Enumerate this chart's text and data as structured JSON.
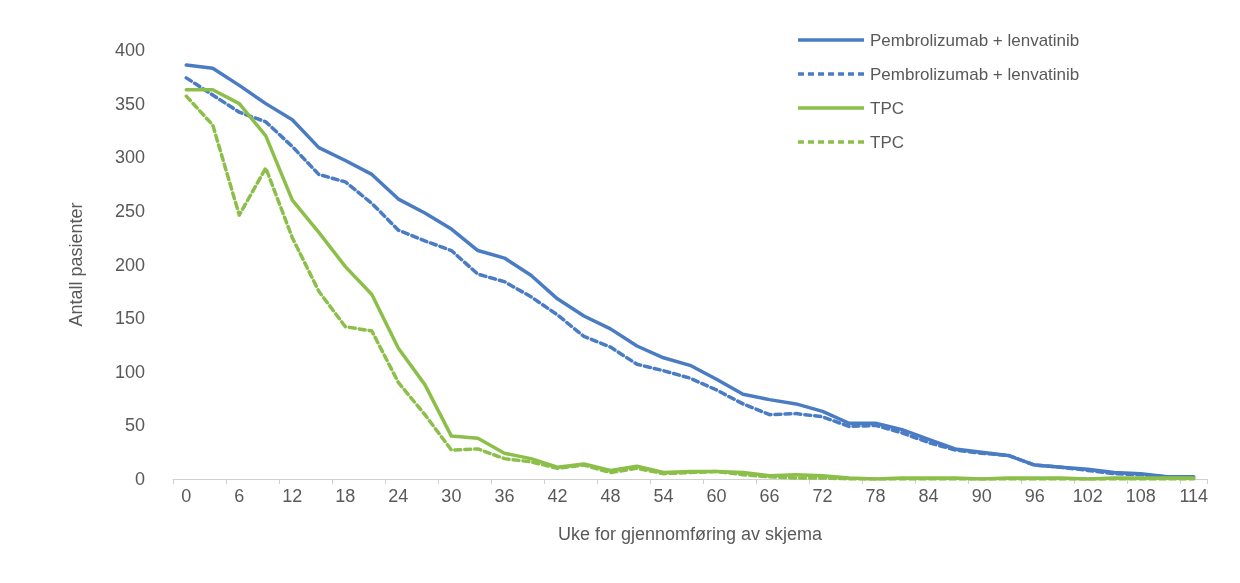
{
  "chart_data": {
    "type": "line",
    "xlabel": "Uke for gjennomføring av skjema",
    "ylabel": "Antall pasienter",
    "categories": [
      "0",
      null,
      "6",
      null,
      "12",
      null,
      "18",
      null,
      "24",
      null,
      "30",
      null,
      "36",
      null,
      "42",
      null,
      "48",
      null,
      "54",
      null,
      "60",
      null,
      "66",
      null,
      "72",
      null,
      "78",
      null,
      "84",
      null,
      "90",
      null,
      "96",
      null,
      "102",
      null,
      "108",
      null,
      "114"
    ],
    "series": [
      {
        "name": "Pembrolizumab + lenvatinib",
        "color": "#4a7cc4",
        "line_style": "solid",
        "values": [
          386,
          383,
          367,
          350,
          335,
          309,
          297,
          284,
          261,
          248,
          233,
          213,
          206,
          190,
          168,
          152,
          140,
          124,
          113,
          106,
          93,
          79,
          74,
          70,
          63,
          52,
          52,
          46,
          37,
          28,
          25,
          22,
          13,
          11,
          9,
          6,
          5,
          2,
          2
        ]
      },
      {
        "name": "Pembrolizumab + lenvatinib",
        "color": "#4a7cc4",
        "line_style": "dashed",
        "values": [
          374,
          358,
          342,
          333,
          310,
          284,
          277,
          257,
          232,
          222,
          213,
          191,
          184,
          170,
          153,
          133,
          123,
          107,
          101,
          94,
          83,
          70,
          60,
          61,
          58,
          49,
          50,
          43,
          34,
          27,
          24,
          22,
          13,
          11,
          8,
          5,
          4,
          2,
          1
        ]
      },
      {
        "name": "TPC",
        "color": "#8cbf4a",
        "line_style": "solid",
        "values": [
          363,
          363,
          350,
          320,
          260,
          230,
          198,
          172,
          122,
          88,
          40,
          38,
          24,
          19,
          11,
          14,
          8,
          12,
          6,
          7,
          7,
          6,
          3,
          4,
          3,
          1,
          0,
          1,
          1,
          1,
          0,
          1,
          1,
          1,
          0,
          1,
          1,
          1,
          1
        ]
      },
      {
        "name": "TPC",
        "color": "#8cbf4a",
        "line_style": "dashed",
        "values": [
          357,
          330,
          246,
          290,
          225,
          175,
          142,
          138,
          90,
          60,
          27,
          28,
          19,
          16,
          10,
          13,
          6,
          10,
          5,
          6,
          7,
          4,
          2,
          1,
          1,
          0,
          0,
          0,
          0,
          0,
          0,
          0,
          0,
          0,
          0,
          0,
          0,
          0,
          0
        ]
      }
    ],
    "ylim": [
      0,
      400
    ],
    "yticks": [
      0,
      50,
      100,
      150,
      200,
      250,
      300,
      350,
      400
    ],
    "grid": false,
    "legend": "top right",
    "marker": "none"
  }
}
